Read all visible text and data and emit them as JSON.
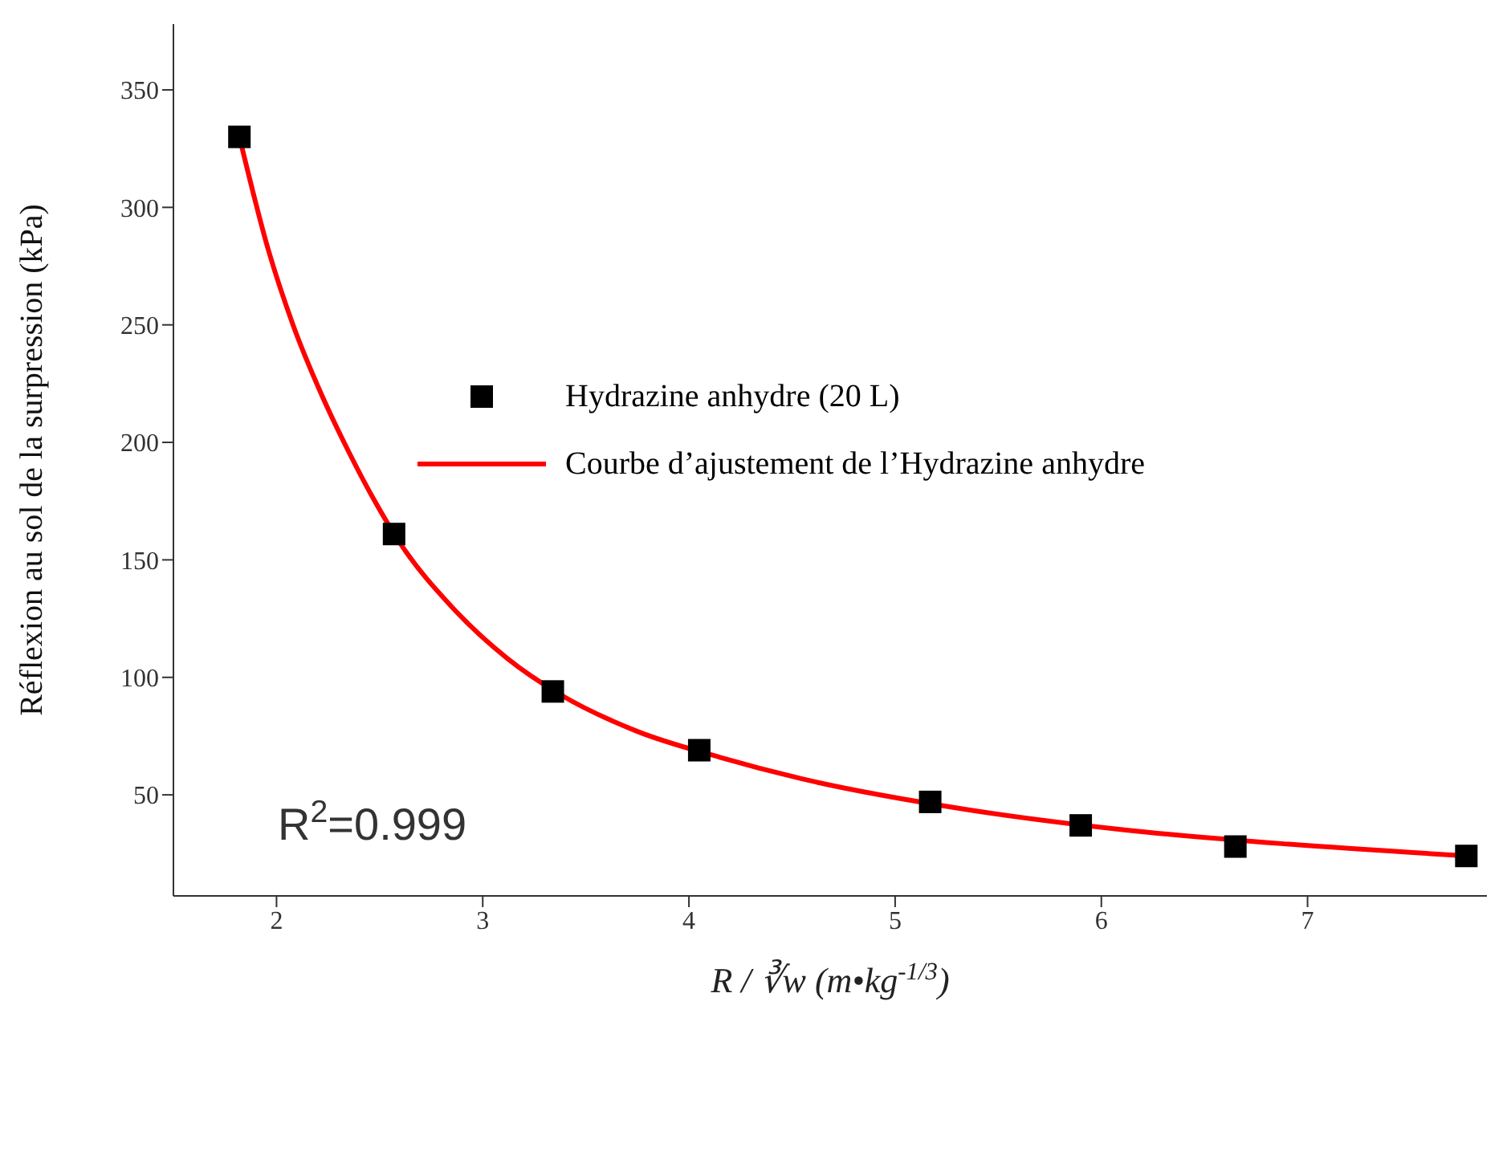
{
  "chart_data": {
    "type": "scatter",
    "xlabel": "R / ∛w (m•kg$^{-1/3}$)",
    "ylabel": "Réflexion au sol de la surpression (kPa)",
    "xlim": [
      1.5,
      7.87
    ],
    "xticks": [
      2,
      3,
      4,
      5,
      6,
      7
    ],
    "ylim": [
      7,
      378
    ],
    "yticks": [
      50,
      100,
      150,
      200,
      250,
      300,
      350
    ],
    "legend": "top",
    "annotations": [
      "R$^{2}$=0.999"
    ],
    "series": [
      {
        "name": "Hydrazine anhydre (20 L)",
        "marker": "square",
        "color": "#000000",
        "x": [
          1.82,
          2.57,
          3.34,
          4.05,
          5.17,
          5.9,
          6.65,
          7.77
        ],
        "values": [
          330,
          161,
          94,
          69,
          47,
          37,
          28,
          24
        ]
      },
      {
        "name": "Courbe d’ajustement de l’Hydrazine anhydre",
        "type": "line",
        "color": "#ff0000",
        "x": [
          1.82,
          1.96,
          2.08,
          2.22,
          2.35,
          2.47,
          2.6,
          2.85,
          3.12,
          3.37,
          3.75,
          4.15,
          4.54,
          5.33,
          6.12,
          6.91,
          7.78
        ],
        "values": [
          330,
          282,
          250,
          220,
          196,
          176,
          157,
          130,
          108,
          93,
          77,
          66,
          57,
          44,
          35,
          29,
          24
        ]
      }
    ]
  }
}
